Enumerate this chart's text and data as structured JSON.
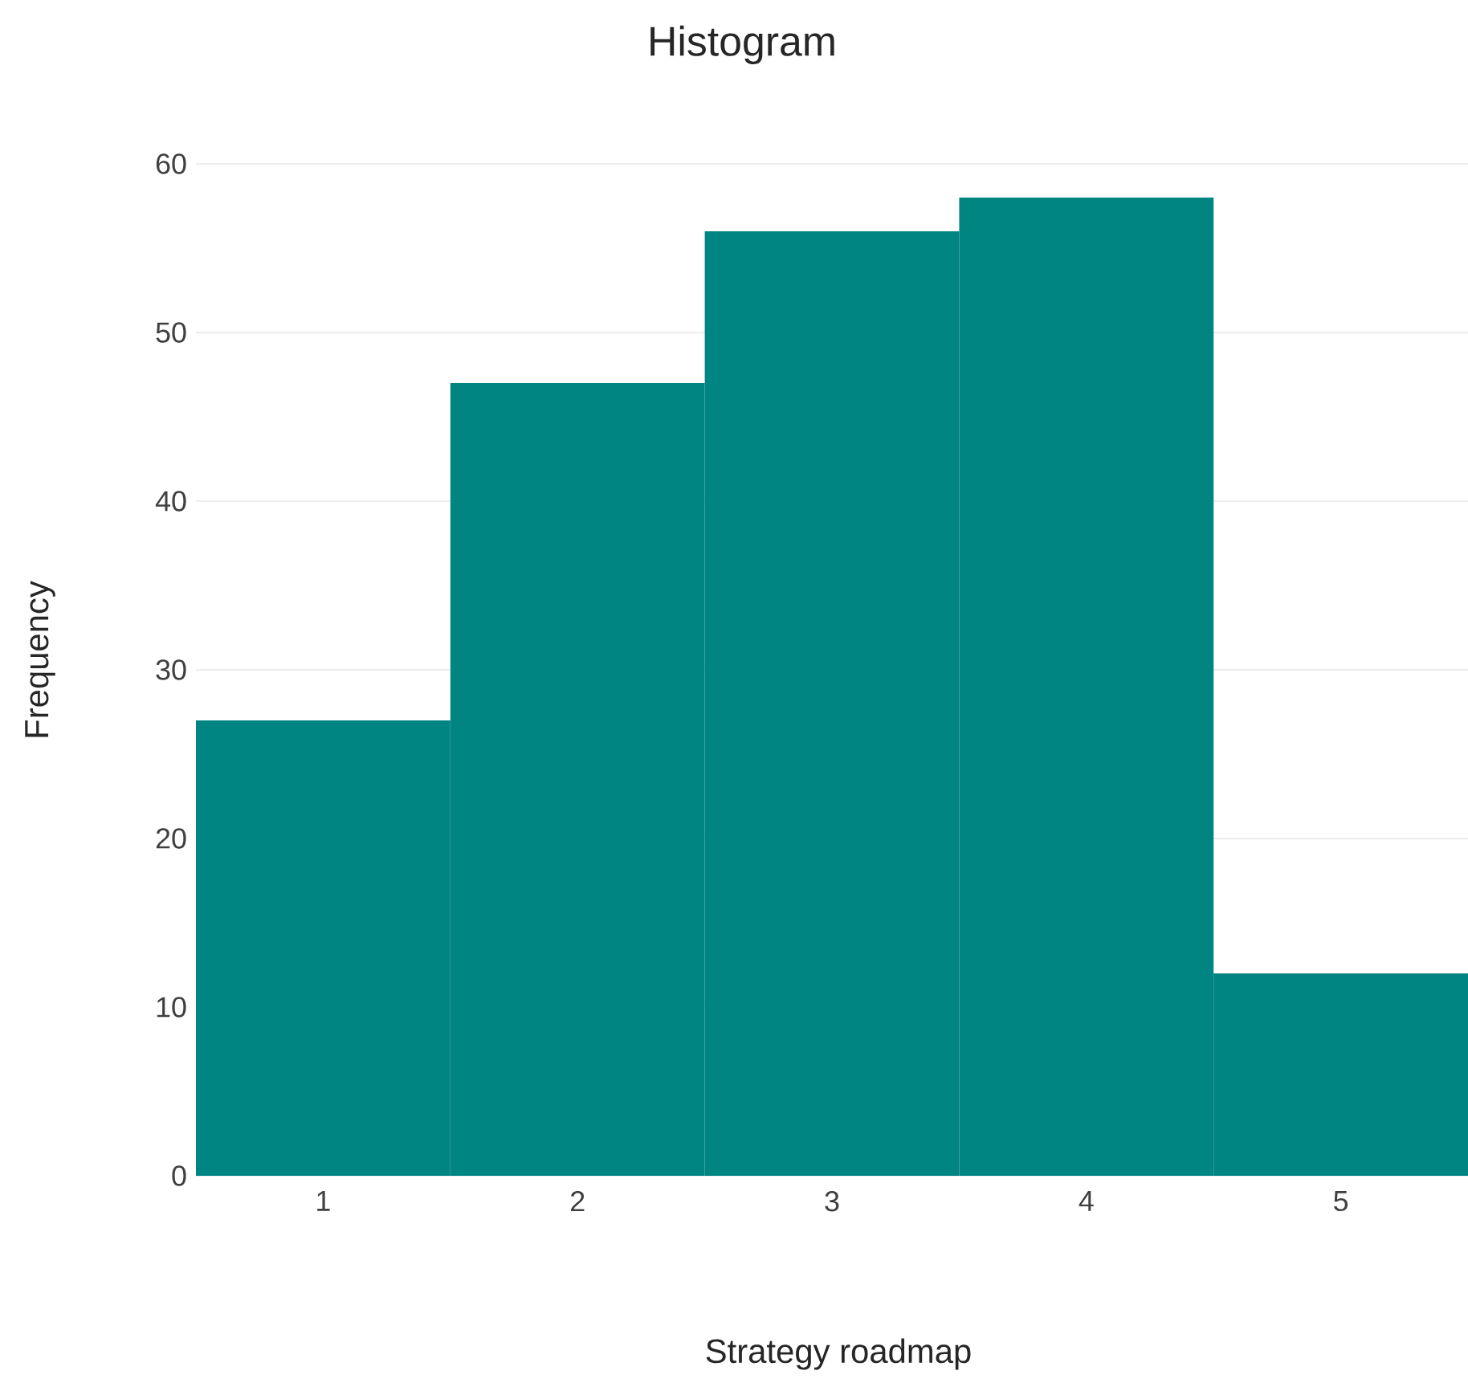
{
  "chart_data": {
    "type": "histogram",
    "title": "Histogram",
    "xlabel": "Strategy roadmap",
    "ylabel": "Frequency",
    "bins": [
      0.5,
      1.5,
      2.5,
      3.5,
      4.5,
      5.5
    ],
    "values": [
      27,
      47,
      56,
      58,
      12
    ],
    "color": "#008583",
    "xlim": [
      0.5,
      5.5
    ],
    "ylim": [
      0,
      60
    ],
    "xticks": [
      1,
      2,
      3,
      4,
      5
    ],
    "yticks": [
      0,
      10,
      20,
      30,
      40,
      50,
      60
    ],
    "grid": "y"
  }
}
